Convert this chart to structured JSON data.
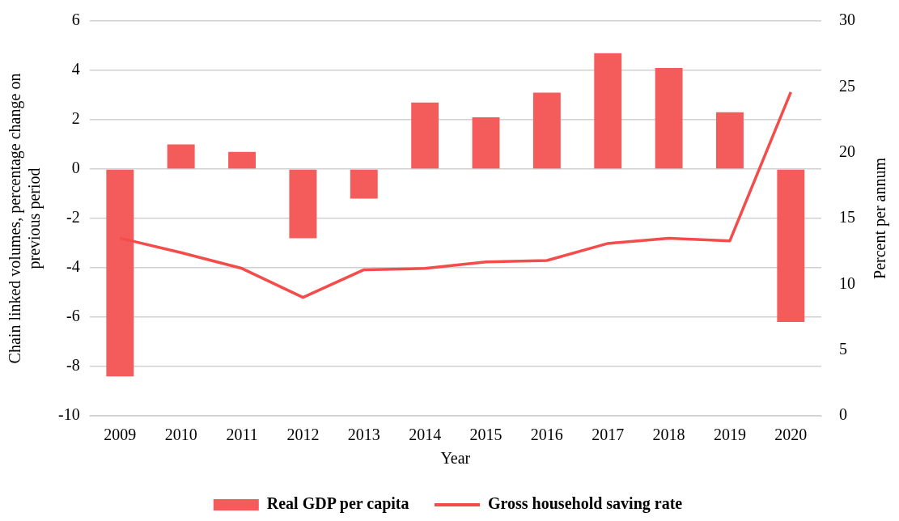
{
  "chart_data": {
    "type": "bar",
    "categories": [
      "2009",
      "2010",
      "2011",
      "2012",
      "2013",
      "2014",
      "2015",
      "2016",
      "2017",
      "2018",
      "2019",
      "2020"
    ],
    "series": [
      {
        "name": "Real GDP per capita",
        "color": "#f45c5c",
        "values": [
          -8.4,
          1.0,
          0.7,
          -2.8,
          -1.2,
          2.7,
          2.1,
          3.1,
          4.7,
          4.1,
          2.3,
          -6.2
        ]
      },
      {
        "name": "Gross household saving rate",
        "type": "line",
        "axis": "y2",
        "color": "#f44b4b",
        "values": [
          13.5,
          12.4,
          11.2,
          9.0,
          11.1,
          11.2,
          11.7,
          11.8,
          13.1,
          13.5,
          13.3,
          24.6
        ]
      }
    ],
    "xlabel": "Year",
    "ylabel": "Chain linked volumes, percentage change on\nprevious period",
    "y2label": "Percent per annum",
    "ylim": [
      -10,
      6
    ],
    "yticks": [
      -10,
      -8,
      -6,
      -4,
      -2,
      0,
      2,
      4,
      6
    ],
    "y2lim": [
      0,
      30
    ],
    "y2ticks": [
      0,
      5,
      10,
      15,
      20,
      25,
      30
    ],
    "grid": "y",
    "legend": "bottom",
    "marker": "none",
    "line_style": "solid"
  }
}
